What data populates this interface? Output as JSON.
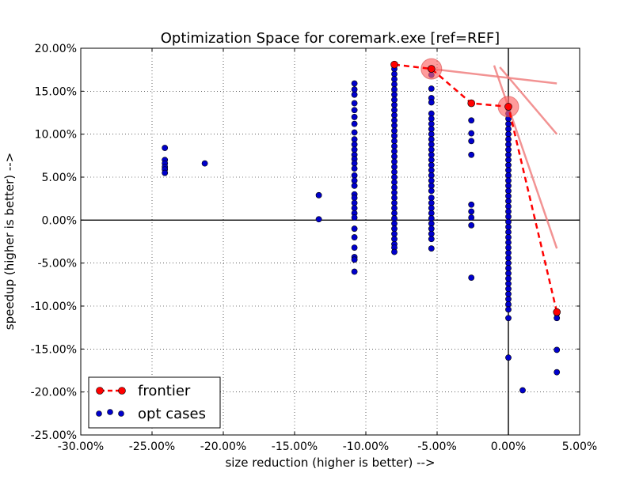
{
  "chart_data": {
    "type": "scatter",
    "title": "Optimization Space for coremark.exe [ref=REF]",
    "xlabel": "size reduction (higher is better) -->",
    "ylabel": "speedup (higher is better) -->",
    "xlim": [
      -30,
      5
    ],
    "ylim": [
      -25,
      20
    ],
    "xticks": [
      "-30.00%",
      "-25.00%",
      "-20.00%",
      "-15.00%",
      "-10.00%",
      "-5.00%",
      "0.00%",
      "5.00%"
    ],
    "yticks": [
      "20.00%",
      "15.00%",
      "10.00%",
      "5.00%",
      "0.00%",
      "-5.00%",
      "-10.00%",
      "-15.00%",
      "-20.00%",
      "-25.00%"
    ],
    "grid": true,
    "legend_position": "bottom-left",
    "legend": [
      "frontier",
      "opt cases"
    ],
    "colors": {
      "frontier": "#ff0000",
      "opt": "#0000cc",
      "highlight": "#ff6666",
      "trend": "#f08080"
    },
    "frontier": {
      "name": "frontier",
      "points": [
        [
          -8.0,
          18.1
        ],
        [
          -5.4,
          17.6
        ],
        [
          -2.6,
          13.6
        ],
        [
          0.0,
          13.2
        ],
        [
          3.4,
          -10.7
        ]
      ]
    },
    "highlights": [
      [
        -5.4,
        17.6
      ],
      [
        0.0,
        13.2
      ]
    ],
    "trend_lines": [
      [
        [
          -5.4,
          17.6
        ],
        [
          3.4,
          15.9
        ]
      ],
      [
        [
          -0.6,
          17.8
        ],
        [
          3.4,
          10.0
        ]
      ],
      [
        [
          -1.0,
          18.0
        ],
        [
          3.4,
          -3.3
        ]
      ]
    ],
    "opt_cases": {
      "name": "opt cases",
      "columns": [
        {
          "x": -24.1,
          "y": [
            8.4,
            7.0,
            6.6,
            6.2,
            5.9,
            5.5
          ]
        },
        {
          "x": -21.3,
          "y": [
            6.6
          ]
        },
        {
          "x": -13.3,
          "y": [
            2.9,
            0.1
          ]
        },
        {
          "x": -10.8,
          "y": [
            15.9,
            15.2,
            14.6,
            13.6,
            12.8,
            12.0,
            11.2,
            10.2,
            9.4,
            8.8,
            8.2,
            7.6,
            7.1,
            6.6,
            6.0,
            5.2,
            4.6,
            4.0,
            3.0,
            2.6,
            2.0,
            1.4,
            0.8,
            0.3,
            -1.0,
            -2.0,
            -3.2,
            -4.3,
            -4.6,
            -6.0
          ]
        },
        {
          "x": -8.0,
          "y": [
            17.6,
            17.0,
            16.4,
            15.8,
            15.2,
            14.6,
            14.0,
            13.4,
            12.8,
            12.2,
            11.6,
            11.0,
            10.4,
            9.8,
            9.2,
            8.6,
            8.0,
            7.4,
            6.8,
            6.2,
            5.6,
            5.0,
            4.4,
            3.8,
            3.2,
            2.6,
            2.0,
            1.4,
            0.8,
            0.2,
            -0.4,
            -1.0,
            -1.6,
            -2.2,
            -2.8,
            -3.2,
            -3.7
          ]
        },
        {
          "x": -5.4,
          "y": [
            16.9,
            15.3,
            14.2,
            13.7,
            12.4,
            11.8,
            11.2,
            10.6,
            10.0,
            9.4,
            8.8,
            8.2,
            7.6,
            7.0,
            6.4,
            5.8,
            5.2,
            4.6,
            4.0,
            3.4,
            2.6,
            2.0,
            1.4,
            0.8,
            0.2,
            -0.4,
            -1.0,
            -1.6,
            -2.2,
            -3.3
          ]
        },
        {
          "x": -2.6,
          "y": [
            11.6,
            10.1,
            9.2,
            7.6,
            1.8,
            1.0,
            0.3,
            -0.6,
            -6.7
          ]
        },
        {
          "x": 0.0,
          "y": [
            13.0,
            12.4,
            11.8,
            11.2,
            10.6,
            10.0,
            9.4,
            8.8,
            8.2,
            7.6,
            7.0,
            6.4,
            5.8,
            5.2,
            4.6,
            4.0,
            3.4,
            2.8,
            2.2,
            1.6,
            1.0,
            0.4,
            -0.2,
            -0.8,
            -1.4,
            -2.0,
            -2.6,
            -3.2,
            -3.8,
            -4.4,
            -5.0,
            -5.6,
            -6.2,
            -6.8,
            -7.4,
            -8.0,
            -8.6,
            -9.2,
            -9.8,
            -10.4,
            -11.4,
            -16.0
          ]
        },
        {
          "x": 1.0,
          "y": [
            -19.8
          ]
        },
        {
          "x": 3.4,
          "y": [
            -10.9,
            -11.4,
            -15.1,
            -17.7
          ]
        }
      ]
    }
  }
}
